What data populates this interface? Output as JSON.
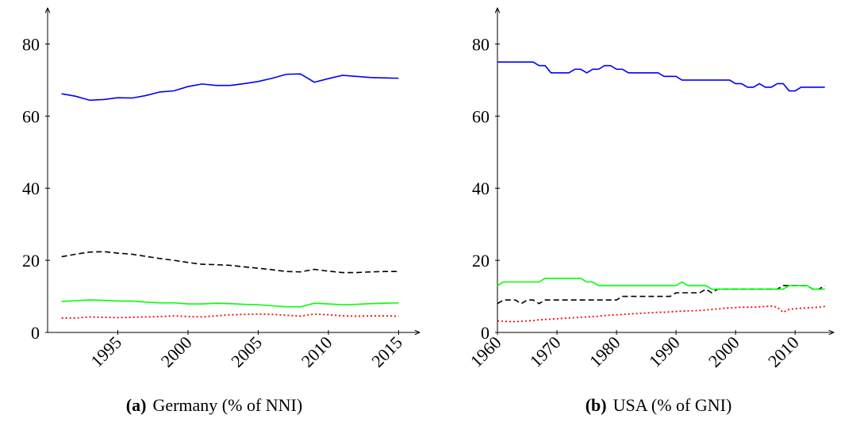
{
  "chart_data": [
    {
      "type": "line",
      "label": "(a)",
      "title": "Germany (% of NNI)",
      "xlim": [
        1990,
        2016.5
      ],
      "ylim": [
        0,
        90
      ],
      "xticks": [
        1995,
        2000,
        2005,
        2010,
        2015
      ],
      "yticks": [
        0,
        20,
        40,
        60,
        80
      ],
      "x": [
        1991,
        1992,
        1993,
        1994,
        1995,
        1996,
        1997,
        1998,
        1999,
        2000,
        2001,
        2002,
        2003,
        2004,
        2005,
        2006,
        2007,
        2008,
        2009,
        2010,
        2011,
        2012,
        2013,
        2014,
        2015
      ],
      "series": [
        {
          "color": "#0000ff",
          "style": "solid",
          "values": [
            66.2,
            65.5,
            64.4,
            64.6,
            65.1,
            65.0,
            65.7,
            66.7,
            67.0,
            68.2,
            68.9,
            68.5,
            68.5,
            69.0,
            69.6,
            70.5,
            71.6,
            71.7,
            69.4,
            70.4,
            71.3,
            71.0,
            70.7,
            70.6,
            70.5
          ]
        },
        {
          "color": "#000000",
          "style": "dashed",
          "values": [
            21.0,
            21.7,
            22.3,
            22.4,
            22.0,
            21.7,
            21.1,
            20.5,
            20.0,
            19.4,
            18.9,
            18.8,
            18.6,
            18.2,
            17.8,
            17.4,
            16.9,
            16.8,
            17.5,
            17.0,
            16.6,
            16.6,
            16.8,
            16.9,
            16.9
          ]
        },
        {
          "color": "#00ff00",
          "style": "solid",
          "values": [
            8.6,
            8.8,
            9.0,
            8.9,
            8.7,
            8.7,
            8.4,
            8.2,
            8.2,
            7.9,
            7.9,
            8.1,
            8.0,
            7.8,
            7.7,
            7.4,
            7.1,
            7.1,
            8.1,
            7.9,
            7.7,
            7.8,
            8.0,
            8.1,
            8.2
          ]
        },
        {
          "color": "#ff0000",
          "style": "dotted",
          "values": [
            4.0,
            4.0,
            4.3,
            4.2,
            4.1,
            4.2,
            4.3,
            4.4,
            4.6,
            4.4,
            4.3,
            4.6,
            4.9,
            5.0,
            5.1,
            5.0,
            4.8,
            4.5,
            5.1,
            4.9,
            4.6,
            4.5,
            4.6,
            4.6,
            4.5
          ]
        }
      ]
    },
    {
      "type": "line",
      "label": "(b)",
      "title": "USA (% of GNI)",
      "xlim": [
        1960,
        2016.5
      ],
      "ylim": [
        0,
        90
      ],
      "xticks": [
        1960,
        1970,
        1980,
        1990,
        2000,
        2010
      ],
      "yticks": [
        0,
        20,
        40,
        60,
        80
      ],
      "x": [
        1960,
        1961,
        1962,
        1963,
        1964,
        1965,
        1966,
        1967,
        1968,
        1969,
        1970,
        1971,
        1972,
        1973,
        1974,
        1975,
        1976,
        1977,
        1978,
        1979,
        1980,
        1981,
        1982,
        1983,
        1984,
        1985,
        1986,
        1987,
        1988,
        1989,
        1990,
        1991,
        1992,
        1993,
        1994,
        1995,
        1996,
        1997,
        1998,
        1999,
        2000,
        2001,
        2002,
        2003,
        2004,
        2005,
        2006,
        2007,
        2008,
        2009,
        2010,
        2011,
        2012,
        2013,
        2014,
        2015
      ],
      "series": [
        {
          "color": "#0000ff",
          "style": "solid",
          "values": [
            75,
            75,
            75,
            75,
            75,
            75,
            75,
            74,
            74,
            72,
            72,
            72,
            72,
            73,
            73,
            72,
            73,
            73,
            74,
            74,
            73,
            73,
            72,
            72,
            72,
            72,
            72,
            72,
            71,
            71,
            71,
            70,
            70,
            70,
            70,
            70,
            70,
            70,
            70,
            70,
            69,
            69,
            68,
            68,
            69,
            68,
            68,
            69,
            69,
            67,
            67,
            68,
            68,
            68,
            68,
            68
          ]
        },
        {
          "color": "#000000",
          "style": "dashed",
          "values": [
            8,
            9,
            9,
            9,
            8,
            9,
            9,
            8,
            9,
            9,
            9,
            9,
            9,
            9,
            9,
            9,
            9,
            9,
            9,
            9,
            9,
            10,
            10,
            10,
            10,
            10,
            10,
            10,
            10,
            10,
            11,
            11,
            11,
            11,
            11,
            12,
            11,
            12,
            12,
            12,
            12,
            12,
            12,
            12,
            12,
            12,
            12,
            12,
            13,
            13,
            13,
            13,
            13,
            12,
            12,
            13
          ]
        },
        {
          "color": "#00ff00",
          "style": "solid",
          "values": [
            13,
            14,
            14,
            14,
            14,
            14,
            14,
            14,
            15,
            15,
            15,
            15,
            15,
            15,
            15,
            14,
            14,
            13,
            13,
            13,
            13,
            13,
            13,
            13,
            13,
            13,
            13,
            13,
            13,
            13,
            13,
            14,
            13,
            13,
            13,
            13,
            12,
            12,
            12,
            12,
            12,
            12,
            12,
            12,
            12,
            12,
            12,
            12,
            12,
            13,
            13,
            13,
            13,
            12,
            12,
            12
          ]
        },
        {
          "color": "#ff0000",
          "style": "dotted",
          "values": [
            3.2,
            3.1,
            3.0,
            3.0,
            3.1,
            3.2,
            3.3,
            3.5,
            3.6,
            3.7,
            3.8,
            3.9,
            4.0,
            4.1,
            4.2,
            4.3,
            4.4,
            4.5,
            4.7,
            4.8,
            4.9,
            5.0,
            5.1,
            5.2,
            5.3,
            5.4,
            5.5,
            5.6,
            5.6,
            5.7,
            5.8,
            5.9,
            6.0,
            6.0,
            6.1,
            6.2,
            6.4,
            6.5,
            6.7,
            6.8,
            6.9,
            7.0,
            7.0,
            7.0,
            7.1,
            7.2,
            7.3,
            7.0,
            5.6,
            6.4,
            6.6,
            6.7,
            6.8,
            6.9,
            7.0,
            7.2
          ]
        }
      ]
    }
  ]
}
